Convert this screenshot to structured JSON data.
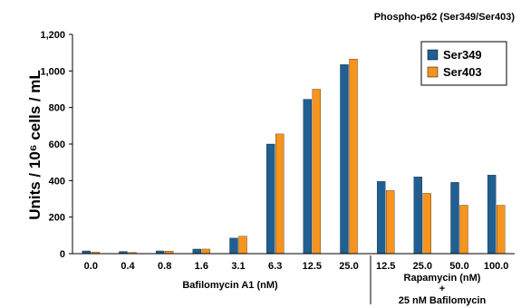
{
  "chart_data": {
    "type": "bar",
    "title": "Phospho-p62 (Ser349/Ser403)",
    "ylabel": "Units / 10⁶ cells / mL",
    "ylim": [
      0,
      1200
    ],
    "yticks": [
      0,
      200,
      400,
      600,
      800,
      "1,000",
      "1,200"
    ],
    "ytick_values": [
      0,
      200,
      400,
      600,
      800,
      1000,
      1200
    ],
    "grid": false,
    "legend_position": "top-right",
    "categories": [
      "0.0",
      "0.4",
      "0.8",
      "1.6",
      "3.1",
      "6.3",
      "12.5",
      "25.0",
      "12.5",
      "25.0",
      "50.0",
      "100.0"
    ],
    "groups": [
      {
        "label": "Bafilomycin A1 (nM)",
        "count": 8
      },
      {
        "label_lines": [
          "Rapamycin (nM)",
          "+",
          "25 nM Bafilomycin"
        ],
        "count": 4
      }
    ],
    "series": [
      {
        "name": "Ser349",
        "color": "#1f5f91",
        "values": [
          15,
          12,
          15,
          25,
          85,
          600,
          845,
          1035,
          395,
          420,
          390,
          430
        ]
      },
      {
        "name": "Ser403",
        "color": "#f7941d",
        "values": [
          8,
          6,
          14,
          25,
          95,
          655,
          900,
          1065,
          345,
          330,
          265,
          265
        ]
      }
    ]
  }
}
